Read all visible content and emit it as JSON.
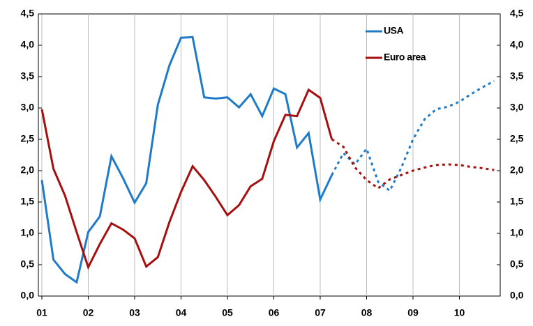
{
  "chart_data": {
    "type": "line",
    "x": [
      1,
      1.25,
      1.5,
      1.75,
      2,
      2.25,
      2.5,
      2.75,
      3,
      3.25,
      3.5,
      3.75,
      4,
      4.25,
      4.5,
      4.75,
      5,
      5.25,
      5.5,
      5.75,
      6,
      6.25,
      6.5,
      6.75,
      7,
      7.25,
      7.5,
      7.75,
      8,
      8.25,
      8.5,
      8.75,
      9,
      9.25,
      9.5,
      9.75,
      10,
      10.25,
      10.5,
      10.75
    ],
    "series": [
      {
        "name": "USA",
        "color": "#1f7bc8",
        "dash_from": 7.25,
        "values": [
          1.85,
          0.58,
          0.35,
          0.22,
          1.02,
          1.27,
          2.23,
          1.88,
          1.49,
          1.8,
          3.05,
          3.68,
          4.12,
          4.13,
          3.17,
          3.15,
          3.17,
          3.01,
          3.22,
          2.87,
          3.31,
          3.22,
          2.37,
          2.6,
          1.54,
          1.93,
          2.28,
          2.1,
          2.35,
          1.82,
          1.68,
          2.05,
          2.5,
          2.82,
          2.98,
          3.02,
          3.1,
          3.22,
          3.33,
          3.43
        ]
      },
      {
        "name": "Euro area",
        "color": "#a50f0f",
        "dash_from": 7.25,
        "values": [
          2.98,
          2.03,
          1.6,
          1.02,
          0.46,
          0.83,
          1.16,
          1.06,
          0.92,
          0.47,
          0.62,
          1.18,
          1.66,
          2.07,
          1.85,
          1.58,
          1.29,
          1.45,
          1.75,
          1.87,
          2.47,
          2.89,
          2.87,
          3.29,
          3.16,
          2.5,
          2.38,
          2.05,
          1.85,
          1.72,
          1.86,
          1.93,
          2.0,
          2.05,
          2.09,
          2.1,
          2.09,
          2.06,
          2.04,
          2.01
        ]
      }
    ],
    "xlim": [
      0.925,
      10.88
    ],
    "xticks": [
      {
        "value": 1,
        "label": "01"
      },
      {
        "value": 2,
        "label": "02"
      },
      {
        "value": 3,
        "label": "03"
      },
      {
        "value": 4,
        "label": "04"
      },
      {
        "value": 5,
        "label": "05"
      },
      {
        "value": 6,
        "label": "06"
      },
      {
        "value": 7,
        "label": "07"
      },
      {
        "value": 8,
        "label": "08"
      },
      {
        "value": 9,
        "label": "09"
      },
      {
        "value": 10,
        "label": "10"
      }
    ],
    "ylim": [
      0,
      4.5
    ],
    "yticks": [
      {
        "value": 0,
        "label": "0,0"
      },
      {
        "value": 0.5,
        "label": "0,5"
      },
      {
        "value": 1,
        "label": "1,0"
      },
      {
        "value": 1.5,
        "label": "1,5"
      },
      {
        "value": 2,
        "label": "2,0"
      },
      {
        "value": 2.5,
        "label": "2,5"
      },
      {
        "value": 3,
        "label": "3,0"
      },
      {
        "value": 3.5,
        "label": "3,5"
      },
      {
        "value": 4,
        "label": "4,0"
      },
      {
        "value": 4.5,
        "label": "4,5"
      }
    ],
    "y2lim": [
      0,
      4.5
    ],
    "y2ticks": [
      {
        "value": 0,
        "label": "0,0"
      },
      {
        "value": 0.5,
        "label": "0,5"
      },
      {
        "value": 1,
        "label": "1,0"
      },
      {
        "value": 1.5,
        "label": "1,5"
      },
      {
        "value": 2,
        "label": "2,0"
      },
      {
        "value": 2.5,
        "label": "2,5"
      },
      {
        "value": 3,
        "label": "3,0"
      },
      {
        "value": 3.5,
        "label": "3,5"
      },
      {
        "value": 4,
        "label": "4,0"
      },
      {
        "value": 4.5,
        "label": "4,5"
      }
    ],
    "grid": "x",
    "legend": "upper right"
  }
}
